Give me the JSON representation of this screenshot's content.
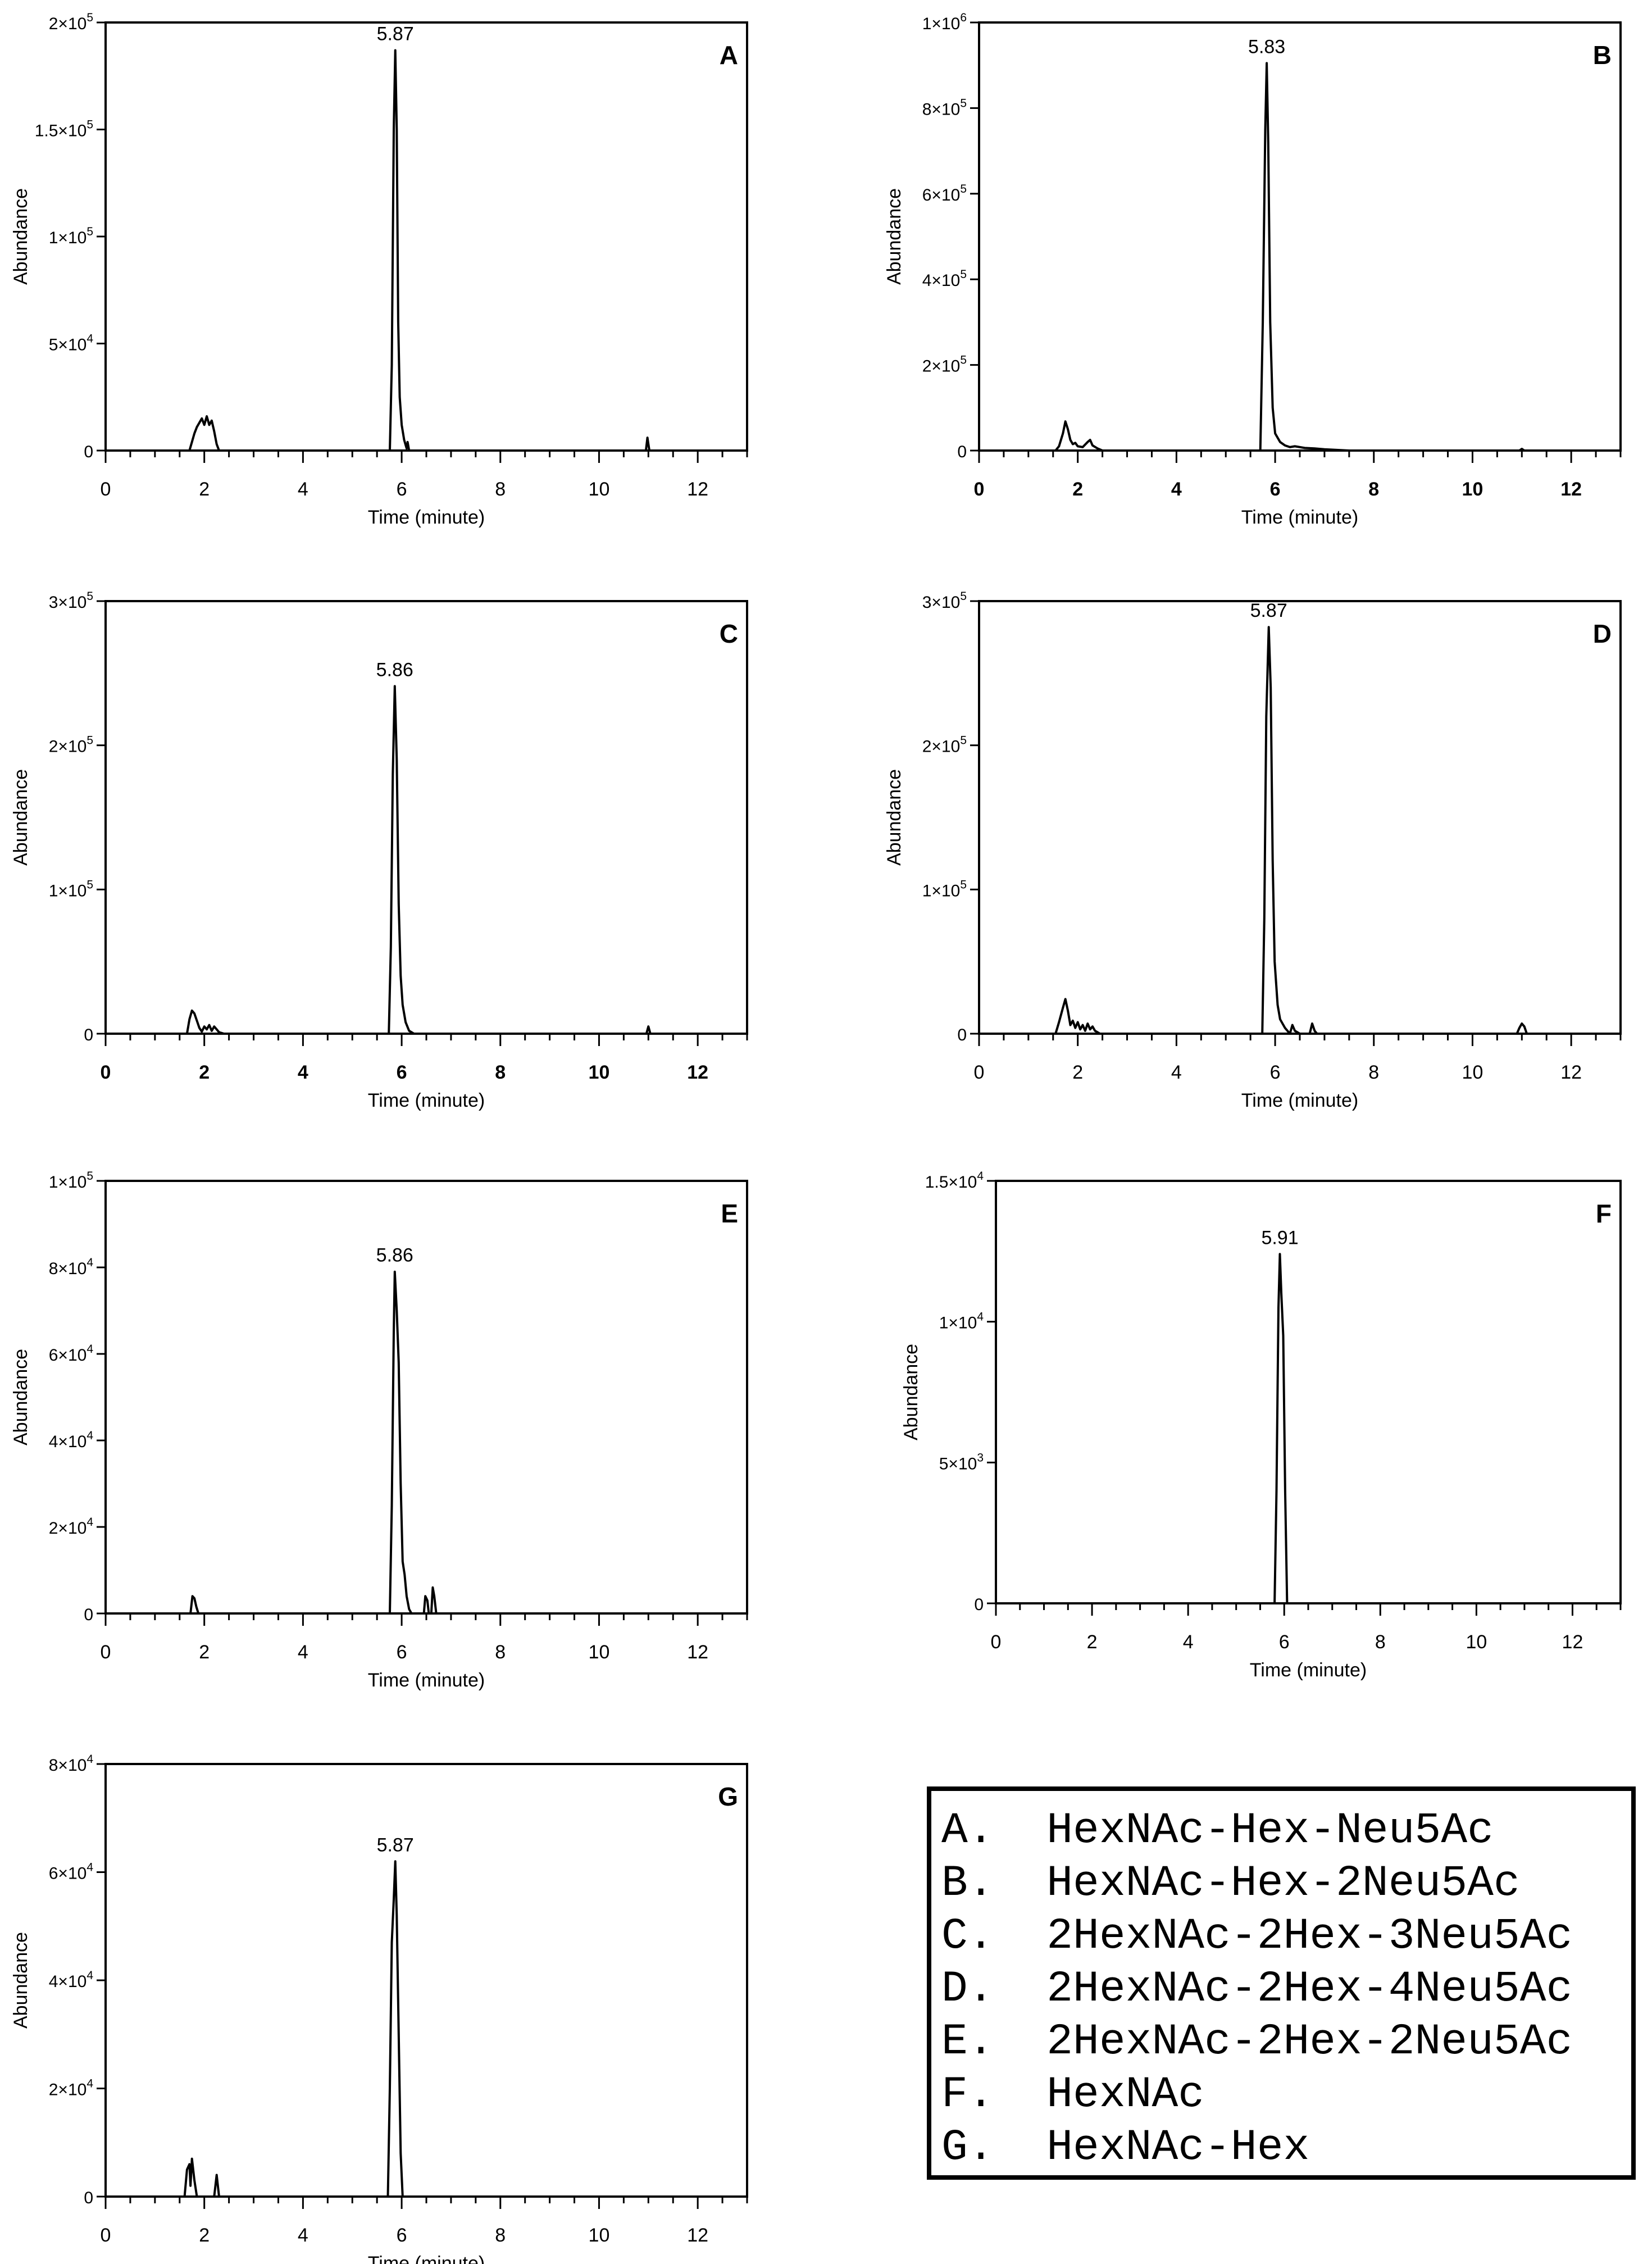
{
  "chart_data": [
    {
      "type": "line",
      "panel_letter": "A",
      "xlabel": "Time (minute)",
      "ylabel": "Abundance",
      "xlim": [
        0,
        13
      ],
      "ylim": [
        0,
        200000
      ],
      "x_ticks": [
        "0",
        "2",
        "4",
        "6",
        "8",
        "10",
        "12"
      ],
      "y_ticks": [
        {
          "value": 0,
          "mant": "0",
          "exp": ""
        },
        {
          "value": 50000,
          "mant": "5×10",
          "exp": "4"
        },
        {
          "value": 100000,
          "mant": "1×10",
          "exp": "5"
        },
        {
          "value": 150000,
          "mant": "1.5×10",
          "exp": "5"
        },
        {
          "value": 200000,
          "mant": "2×10",
          "exp": "5"
        }
      ],
      "peak_label": {
        "text": "5.87",
        "x": 5.87,
        "y": 187000
      },
      "series": [
        {
          "x": [
            0,
            1.7,
            1.75,
            1.8,
            1.85,
            1.9,
            1.95,
            2.0,
            2.05,
            2.1,
            2.15,
            2.2,
            2.25,
            2.3,
            5.76,
            5.8,
            5.84,
            5.87,
            5.9,
            5.93,
            5.96,
            6.0,
            6.05,
            6.1,
            6.12,
            6.15,
            6.2,
            10.95,
            10.98,
            11.0,
            11.02,
            11.05,
            13
          ],
          "y": [
            0,
            0,
            4000,
            8000,
            11000,
            13000,
            15000,
            12000,
            16000,
            12000,
            14000,
            9000,
            3000,
            0,
            0,
            40000,
            150000,
            187000,
            150000,
            60000,
            25000,
            12000,
            5000,
            1000,
            4000,
            0,
            0,
            0,
            6000,
            3000,
            0,
            0,
            0
          ]
        }
      ]
    },
    {
      "type": "line",
      "panel_letter": "B",
      "xlabel": "Time (minute)",
      "ylabel": "Abundance",
      "xlim": [
        0,
        13
      ],
      "ylim": [
        0,
        1000000
      ],
      "x_ticks": [
        "0",
        "2",
        "4",
        "6",
        "8",
        "10",
        "12"
      ],
      "y_ticks": [
        {
          "value": 0,
          "mant": "0",
          "exp": ""
        },
        {
          "value": 200000,
          "mant": "2×10",
          "exp": "5"
        },
        {
          "value": 400000,
          "mant": "4×10",
          "exp": "5"
        },
        {
          "value": 600000,
          "mant": "6×10",
          "exp": "5"
        },
        {
          "value": 800000,
          "mant": "8×10",
          "exp": "5"
        },
        {
          "value": 1000000,
          "mant": "1×10",
          "exp": "6"
        }
      ],
      "peak_label": {
        "text": "5.83",
        "x": 5.83,
        "y": 905000
      },
      "series": [
        {
          "x": [
            0,
            1.55,
            1.62,
            1.7,
            1.75,
            1.8,
            1.85,
            1.9,
            1.95,
            2.0,
            2.1,
            2.2,
            2.25,
            2.3,
            2.4,
            2.5,
            5.7,
            5.75,
            5.8,
            5.83,
            5.86,
            5.9,
            5.95,
            6.0,
            6.1,
            6.2,
            6.3,
            6.4,
            6.6,
            6.8,
            7.0,
            7.5,
            10.95,
            11.0,
            11.05,
            13
          ],
          "y": [
            0,
            0,
            10000,
            40000,
            68000,
            50000,
            25000,
            15000,
            18000,
            10000,
            8000,
            20000,
            25000,
            12000,
            5000,
            0,
            0,
            300000,
            750000,
            905000,
            720000,
            300000,
            100000,
            40000,
            20000,
            12000,
            8000,
            10000,
            6000,
            5000,
            3000,
            0,
            0,
            4000,
            0,
            0
          ]
        }
      ]
    },
    {
      "type": "line",
      "panel_letter": "C",
      "xlabel": "Time (minute)",
      "ylabel": "Abundance",
      "xlim": [
        0,
        13
      ],
      "ylim": [
        0,
        300000
      ],
      "x_ticks": [
        "0",
        "2",
        "4",
        "6",
        "8",
        "10",
        "12"
      ],
      "y_ticks": [
        {
          "value": 0,
          "mant": "0",
          "exp": ""
        },
        {
          "value": 100000,
          "mant": "1×10",
          "exp": "5"
        },
        {
          "value": 200000,
          "mant": "2×10",
          "exp": "5"
        },
        {
          "value": 300000,
          "mant": "3×10",
          "exp": "5"
        }
      ],
      "peak_label": {
        "text": "5.86",
        "x": 5.86,
        "y": 241000
      },
      "series": [
        {
          "x": [
            0,
            1.65,
            1.7,
            1.75,
            1.8,
            1.85,
            1.9,
            1.95,
            2.0,
            2.05,
            2.1,
            2.15,
            2.2,
            2.25,
            2.3,
            2.4,
            5.74,
            5.78,
            5.82,
            5.86,
            5.9,
            5.94,
            5.98,
            6.02,
            6.08,
            6.15,
            6.25,
            10.96,
            11.0,
            11.04,
            13
          ],
          "y": [
            0,
            0,
            10000,
            16000,
            14000,
            9000,
            4000,
            1500,
            5000,
            3000,
            6000,
            2000,
            5000,
            3000,
            1000,
            0,
            0,
            60000,
            180000,
            241000,
            190000,
            90000,
            40000,
            20000,
            8000,
            2000,
            0,
            0,
            5000,
            0,
            0
          ]
        }
      ]
    },
    {
      "type": "line",
      "panel_letter": "D",
      "xlabel": "Time (minute)",
      "ylabel": "Abundance",
      "xlim": [
        0,
        13
      ],
      "ylim": [
        0,
        300000
      ],
      "x_ticks": [
        "0",
        "2",
        "4",
        "6",
        "8",
        "10",
        "12"
      ],
      "y_ticks": [
        {
          "value": 0,
          "mant": "0",
          "exp": ""
        },
        {
          "value": 100000,
          "mant": "1×10",
          "exp": "5"
        },
        {
          "value": 200000,
          "mant": "2×10",
          "exp": "5"
        },
        {
          "value": 300000,
          "mant": "3×10",
          "exp": "5"
        }
      ],
      "peak_label": {
        "text": "5.87",
        "x": 5.87,
        "y": 282000
      },
      "series": [
        {
          "x": [
            0,
            1.55,
            1.62,
            1.7,
            1.75,
            1.8,
            1.85,
            1.9,
            1.95,
            2.0,
            2.05,
            2.1,
            2.15,
            2.2,
            2.25,
            2.3,
            2.35,
            2.45,
            5.74,
            5.78,
            5.82,
            5.87,
            5.91,
            5.95,
            5.99,
            6.05,
            6.1,
            6.2,
            6.3,
            6.35,
            6.4,
            6.5,
            6.7,
            6.75,
            6.8,
            6.85,
            10.9,
            10.95,
            11.0,
            11.05,
            11.1,
            13
          ],
          "y": [
            0,
            0,
            8000,
            18000,
            24000,
            16000,
            6000,
            9000,
            4000,
            8000,
            3000,
            6000,
            2000,
            7000,
            3000,
            5000,
            2000,
            0,
            0,
            80000,
            220000,
            282000,
            240000,
            120000,
            50000,
            20000,
            10000,
            4000,
            0,
            6000,
            2000,
            0,
            0,
            7000,
            2000,
            0,
            0,
            4000,
            7000,
            5000,
            0,
            0
          ]
        }
      ]
    },
    {
      "type": "line",
      "panel_letter": "E",
      "xlabel": "Time (minute)",
      "ylabel": "Abundance",
      "xlim": [
        0,
        13
      ],
      "ylim": [
        0,
        100000
      ],
      "x_ticks": [
        "0",
        "2",
        "4",
        "6",
        "8",
        "10",
        "12"
      ],
      "y_ticks": [
        {
          "value": 0,
          "mant": "0",
          "exp": ""
        },
        {
          "value": 20000,
          "mant": "2×10",
          "exp": "4"
        },
        {
          "value": 40000,
          "mant": "4×10",
          "exp": "4"
        },
        {
          "value": 60000,
          "mant": "6×10",
          "exp": "4"
        },
        {
          "value": 80000,
          "mant": "8×10",
          "exp": "4"
        },
        {
          "value": 100000,
          "mant": "1×10",
          "exp": "5"
        }
      ],
      "peak_label": {
        "text": "5.86",
        "x": 5.86,
        "y": 79000
      },
      "series": [
        {
          "x": [
            0,
            1.72,
            1.76,
            1.8,
            1.84,
            1.88,
            5.76,
            5.8,
            5.84,
            5.86,
            5.9,
            5.94,
            5.98,
            6.02,
            6.06,
            6.1,
            6.15,
            6.2,
            6.45,
            6.48,
            6.52,
            6.55,
            6.6,
            6.63,
            6.66,
            6.7,
            13
          ],
          "y": [
            0,
            0,
            4000,
            3500,
            1500,
            0,
            0,
            25000,
            65000,
            79000,
            70000,
            58000,
            30000,
            12000,
            9000,
            4000,
            1000,
            0,
            0,
            4000,
            3000,
            0,
            0,
            6000,
            4000,
            0,
            0
          ]
        }
      ]
    },
    {
      "type": "line",
      "panel_letter": "F",
      "xlabel": "Time (minute)",
      "ylabel": "Abundance",
      "xlim": [
        0,
        13
      ],
      "ylim": [
        0,
        15000
      ],
      "x_ticks": [
        "0",
        "2",
        "4",
        "6",
        "8",
        "10",
        "12"
      ],
      "y_ticks": [
        {
          "value": 0,
          "mant": "0",
          "exp": ""
        },
        {
          "value": 5000,
          "mant": "5×10",
          "exp": "3"
        },
        {
          "value": 10000,
          "mant": "1×10",
          "exp": "4"
        },
        {
          "value": 15000,
          "mant": "1.5×10",
          "exp": "4"
        }
      ],
      "peak_label": {
        "text": "5.91",
        "x": 5.91,
        "y": 12400
      },
      "series": [
        {
          "x": [
            0,
            5.8,
            5.84,
            5.88,
            5.91,
            5.94,
            5.98,
            6.02,
            6.06,
            13
          ],
          "y": [
            0,
            0,
            4000,
            10500,
            12400,
            11000,
            9500,
            4000,
            0,
            0
          ]
        }
      ]
    },
    {
      "type": "line",
      "panel_letter": "G",
      "xlabel": "Time (minute)",
      "ylabel": "Abundance",
      "xlim": [
        0,
        13
      ],
      "ylim": [
        0,
        80000
      ],
      "x_ticks": [
        "0",
        "2",
        "4",
        "6",
        "8",
        "10",
        "12"
      ],
      "y_ticks": [
        {
          "value": 0,
          "mant": "0",
          "exp": ""
        },
        {
          "value": 20000,
          "mant": "2×10",
          "exp": "4"
        },
        {
          "value": 40000,
          "mant": "4×10",
          "exp": "4"
        },
        {
          "value": 60000,
          "mant": "6×10",
          "exp": "4"
        },
        {
          "value": 80000,
          "mant": "8×10",
          "exp": "4"
        }
      ],
      "peak_label": {
        "text": "5.87",
        "x": 5.87,
        "y": 62000
      },
      "series": [
        {
          "x": [
            0,
            1.6,
            1.65,
            1.7,
            1.72,
            1.75,
            1.8,
            1.85,
            2.2,
            2.25,
            2.3,
            5.72,
            5.76,
            5.8,
            5.84,
            5.87,
            5.9,
            5.94,
            5.98,
            6.02,
            13
          ],
          "y": [
            0,
            0,
            5000,
            6000,
            2000,
            7000,
            3000,
            0,
            0,
            4000,
            0,
            0,
            20000,
            47000,
            55000,
            62000,
            52000,
            30000,
            8000,
            0,
            0
          ]
        }
      ]
    }
  ],
  "legend": {
    "items": [
      "A.  HexNAc-Hex-Neu5Ac",
      "B.  HexNAc-Hex-2Neu5Ac",
      "C.  2HexNAc-2Hex-3Neu5Ac",
      "D.  2HexNAc-2Hex-4Neu5Ac",
      "E.  2HexNAc-2Hex-2Neu5Ac",
      "F.  HexNAc",
      "G.  HexNAc-Hex"
    ]
  }
}
